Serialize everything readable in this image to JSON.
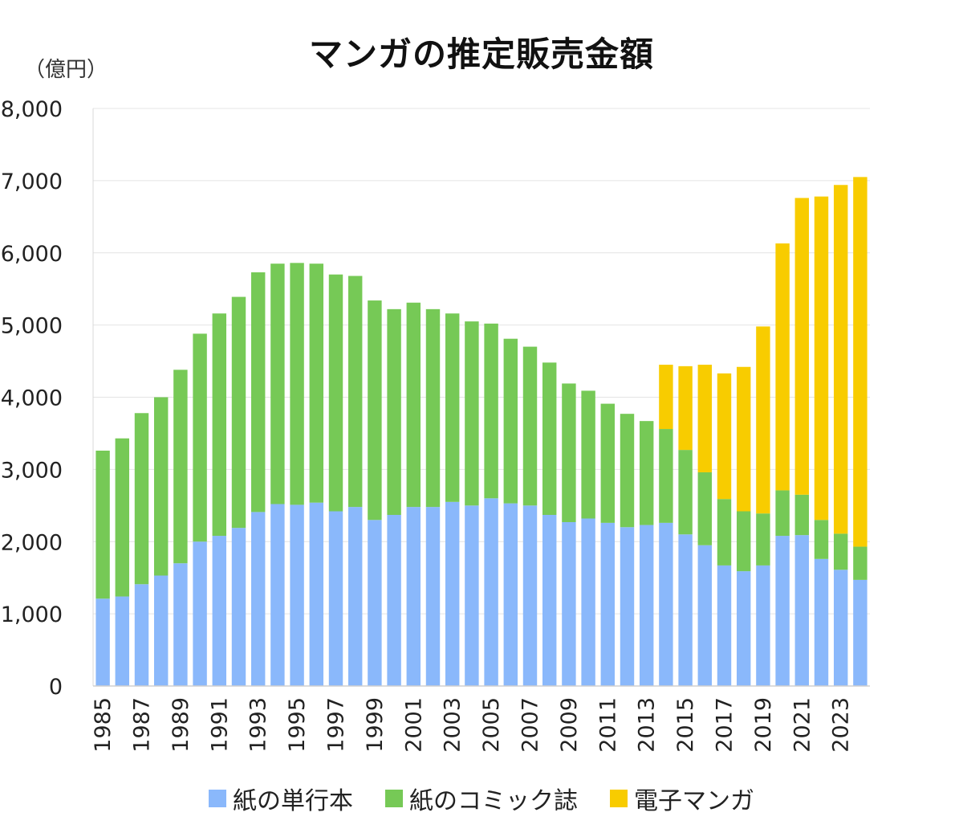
{
  "chart_data": {
    "type": "bar",
    "stacked": true,
    "title": "マンガの推定販売金額",
    "unit_label": "（億円）",
    "ylim": [
      0,
      8000
    ],
    "yticks": [
      "0",
      "1,000",
      "2,000",
      "3,000",
      "4,000",
      "5,000",
      "6,000",
      "7,000",
      "8,000"
    ],
    "grid": true,
    "legend_position": "bottom",
    "categories": [
      1985,
      1986,
      1987,
      1988,
      1989,
      1990,
      1991,
      1992,
      1993,
      1994,
      1995,
      1996,
      1997,
      1998,
      1999,
      2000,
      2001,
      2002,
      2003,
      2004,
      2005,
      2006,
      2007,
      2008,
      2009,
      2010,
      2011,
      2012,
      2013,
      2014,
      2015,
      2016,
      2017,
      2018,
      2019,
      2020,
      2021,
      2022,
      2023,
      2024
    ],
    "xtick_labels": [
      "1985",
      "1987",
      "1989",
      "1991",
      "1993",
      "1995",
      "1997",
      "1999",
      "2001",
      "2003",
      "2005",
      "2007",
      "2009",
      "2011",
      "2013",
      "2015",
      "2017",
      "2019",
      "2021",
      "2023"
    ],
    "series": [
      {
        "name": "紙の単行本",
        "color": "#8ab8fb",
        "values": [
          1210,
          1240,
          1410,
          1530,
          1700,
          2000,
          2080,
          2190,
          2410,
          2520,
          2510,
          2540,
          2420,
          2480,
          2300,
          2370,
          2480,
          2480,
          2550,
          2500,
          2600,
          2530,
          2500,
          2370,
          2270,
          2320,
          2260,
          2200,
          2230,
          2260,
          2100,
          1950,
          1670,
          1590,
          1670,
          2080,
          2090,
          1760,
          1610,
          1470
        ]
      },
      {
        "name": "紙のコミック誌",
        "color": "#76c956",
        "values": [
          2050,
          2190,
          2370,
          2470,
          2680,
          2880,
          3080,
          3200,
          3320,
          3330,
          3350,
          3310,
          3280,
          3200,
          3040,
          2850,
          2830,
          2740,
          2610,
          2550,
          2420,
          2280,
          2200,
          2110,
          1920,
          1770,
          1650,
          1570,
          1440,
          1300,
          1170,
          1010,
          920,
          830,
          720,
          630,
          560,
          540,
          500,
          460
        ]
      },
      {
        "name": "電子マンガ",
        "color": "#f8cc00",
        "values": [
          0,
          0,
          0,
          0,
          0,
          0,
          0,
          0,
          0,
          0,
          0,
          0,
          0,
          0,
          0,
          0,
          0,
          0,
          0,
          0,
          0,
          0,
          0,
          0,
          0,
          0,
          0,
          0,
          0,
          890,
          1160,
          1490,
          1740,
          2000,
          2590,
          3420,
          4110,
          4480,
          4830,
          5120
        ]
      }
    ]
  }
}
